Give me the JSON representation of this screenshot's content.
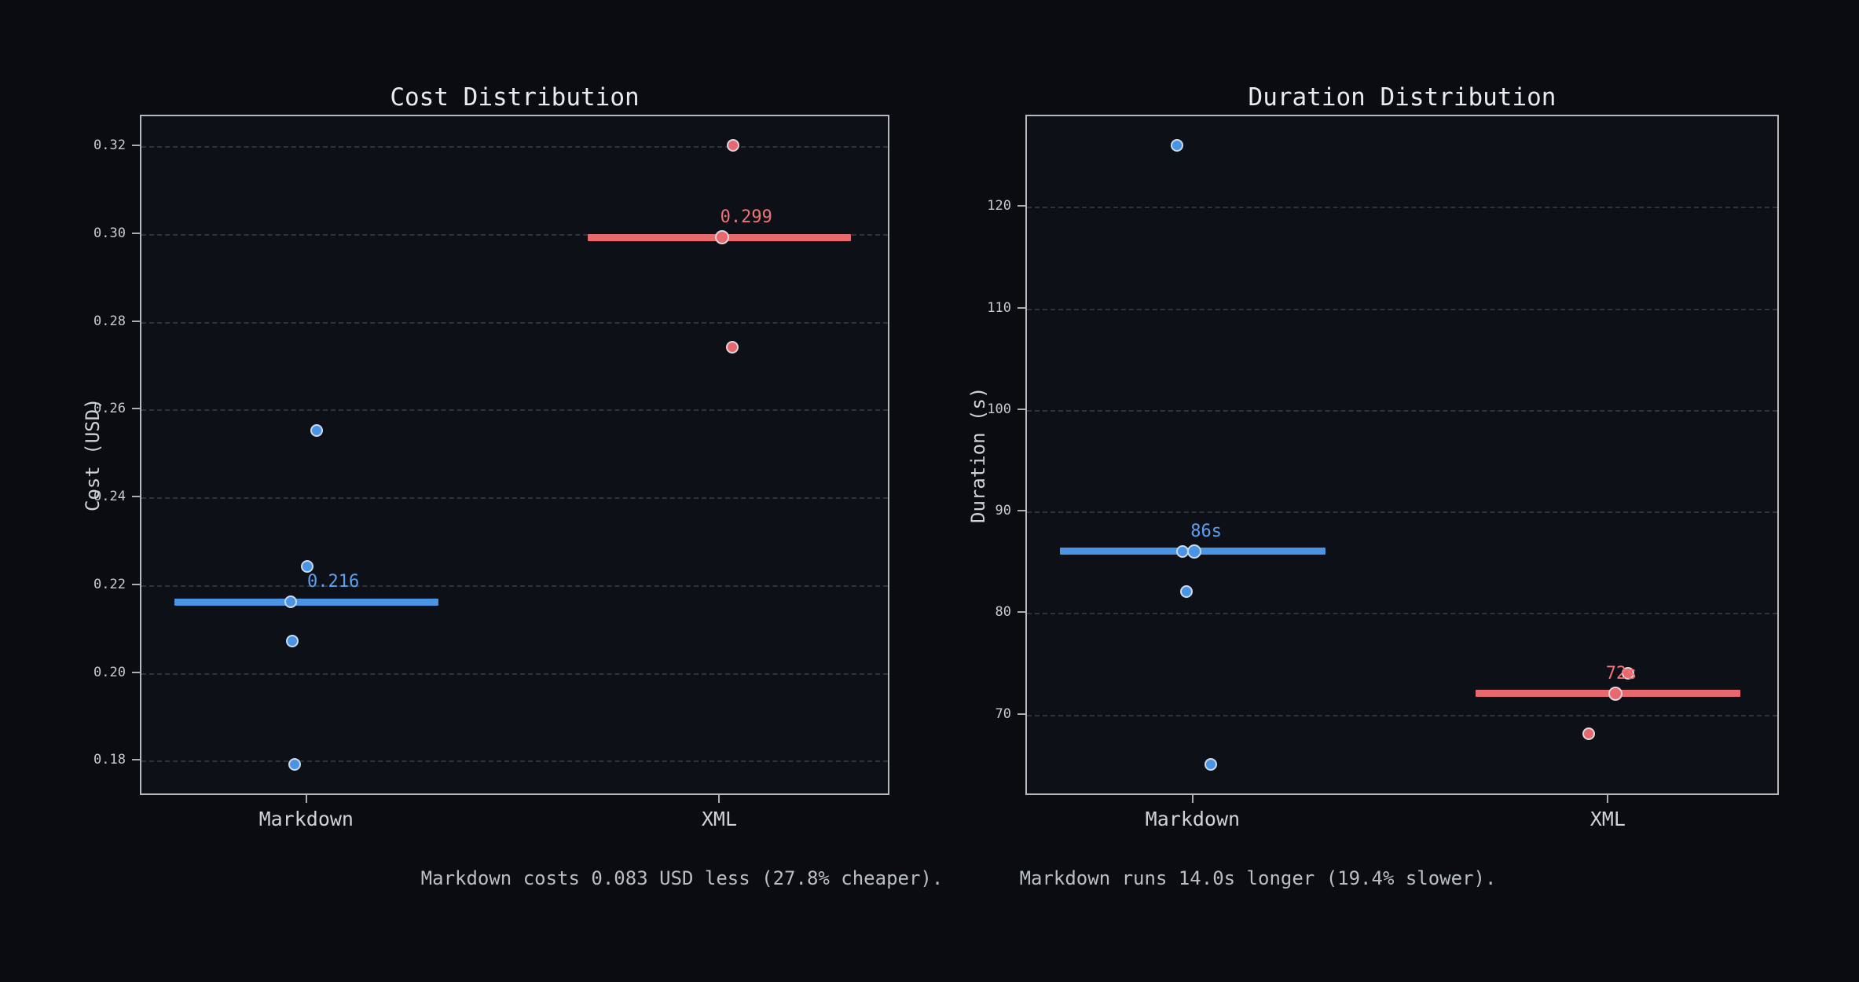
{
  "captions": {
    "cost": "Markdown costs 0.083 USD less (27.8% cheaper).",
    "duration": "Markdown runs 14.0s longer (19.4% slower)."
  },
  "chart_data": [
    {
      "id": "cost",
      "type": "scatter",
      "title": "Cost Distribution",
      "ylabel": "Cost (USD)",
      "categories": [
        "Markdown",
        "XML"
      ],
      "ylim": [
        0.172,
        0.327
      ],
      "yticks": [
        0.18,
        0.2,
        0.22,
        0.24,
        0.26,
        0.28,
        0.3,
        0.32
      ],
      "ytick_labels": [
        "0.18",
        "0.20",
        "0.22",
        "0.24",
        "0.26",
        "0.28",
        "0.30",
        "0.32"
      ],
      "grid": "horizontal-dashed",
      "legend": "none",
      "median_label_dx": 0.036,
      "series": [
        {
          "name": "Markdown",
          "color": "#4a94e6",
          "label_color": "#5ba1f2",
          "median": 0.216,
          "median_label": "0.216",
          "points": [
            {
              "y": 0.255,
              "dx": 0.014
            },
            {
              "y": 0.224,
              "dx": 0.001
            },
            {
              "y": 0.216,
              "dx": -0.021
            },
            {
              "y": 0.207,
              "dx": -0.019
            },
            {
              "y": 0.179,
              "dx": -0.016
            }
          ]
        },
        {
          "name": "XML",
          "color": "#e7696d",
          "label_color": "#ef7378",
          "median": 0.299,
          "median_label": "0.299",
          "points": [
            {
              "y": 0.32,
              "dx": 0.018
            },
            {
              "y": 0.299,
              "dx": 0.004
            },
            {
              "y": 0.274,
              "dx": 0.017
            }
          ]
        }
      ]
    },
    {
      "id": "duration",
      "type": "scatter",
      "title": "Duration Distribution",
      "ylabel": "Duration (s)",
      "categories": [
        "Markdown",
        "XML"
      ],
      "ylim": [
        62,
        129
      ],
      "yticks": [
        70,
        80,
        90,
        100,
        110,
        120
      ],
      "ytick_labels": [
        "70",
        "80",
        "90",
        "100",
        "110",
        "120"
      ],
      "grid": "horizontal-dashed",
      "legend": "none",
      "median_label_dx": 0.018,
      "series": [
        {
          "name": "Markdown",
          "color": "#4a94e6",
          "label_color": "#5ba1f2",
          "median": 86,
          "median_label": "86s",
          "points": [
            {
              "y": 126,
              "dx": -0.021
            },
            {
              "y": 86,
              "dx": -0.013
            },
            {
              "y": 86,
              "dx": 0.002
            },
            {
              "y": 82,
              "dx": -0.008
            },
            {
              "y": 65,
              "dx": 0.024
            }
          ]
        },
        {
          "name": "XML",
          "color": "#e7696d",
          "label_color": "#ef7378",
          "median": 72,
          "median_label": "72s",
          "points": [
            {
              "y": 74,
              "dx": 0.027
            },
            {
              "y": 72,
              "dx": 0.01
            },
            {
              "y": 68,
              "dx": -0.025
            }
          ]
        }
      ]
    }
  ]
}
